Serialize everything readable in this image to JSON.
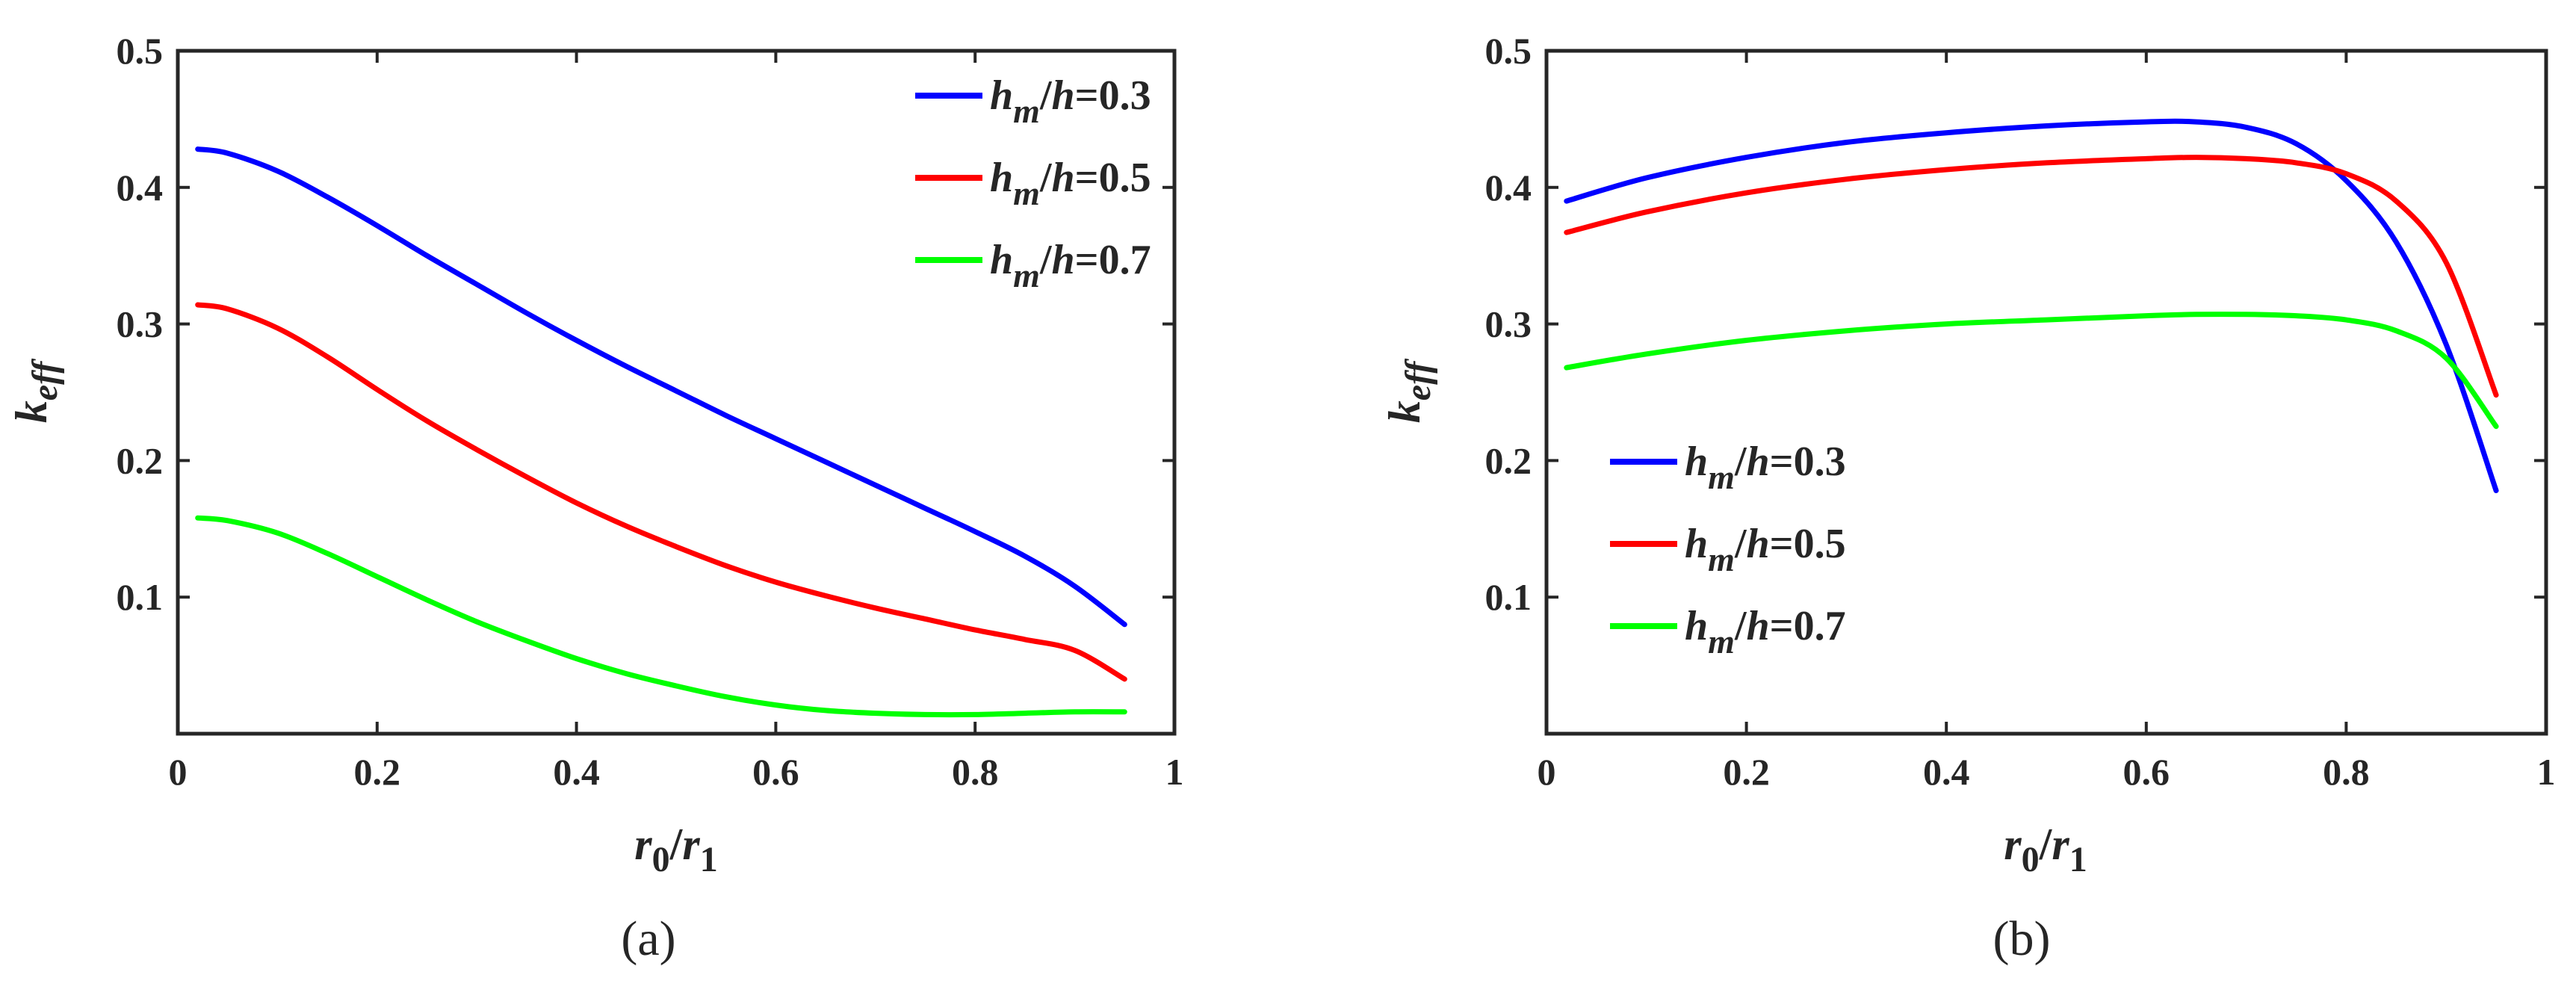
{
  "chart_data": [
    {
      "type": "line",
      "panel_label": "(a)",
      "xlabel": "r0/r1",
      "xlabel_parts": {
        "base1": "r",
        "sub1": "0",
        "sep": "/",
        "base2": "r",
        "sub2": "1"
      },
      "ylabel": "k_eff",
      "ylabel_parts": {
        "base": "k",
        "sub": "eff"
      },
      "xlim": [
        0,
        1
      ],
      "ylim": [
        0,
        0.5
      ],
      "xticks": [
        0,
        0.2,
        0.4,
        0.6,
        0.8,
        1
      ],
      "xtick_labels": [
        "0",
        "0.2",
        "0.4",
        "0.6",
        "0.8",
        "1"
      ],
      "yticks": [
        0.1,
        0.2,
        0.3,
        0.4,
        0.5
      ],
      "ytick_labels": [
        "0.1",
        "0.2",
        "0.3",
        "0.4",
        "0.5"
      ],
      "legend_position": "top-right",
      "series": [
        {
          "name": "hm/h=0.3",
          "label": {
            "base": "h",
            "sub": "m",
            "rest": "/h=0.3"
          },
          "color": "#0000FF",
          "x": [
            0.02,
            0.05,
            0.1,
            0.15,
            0.2,
            0.25,
            0.3,
            0.35,
            0.4,
            0.45,
            0.5,
            0.55,
            0.6,
            0.65,
            0.7,
            0.75,
            0.8,
            0.85,
            0.9,
            0.95
          ],
          "y": [
            0.428,
            0.425,
            0.412,
            0.393,
            0.372,
            0.35,
            0.329,
            0.308,
            0.288,
            0.269,
            0.251,
            0.233,
            0.216,
            0.199,
            0.182,
            0.165,
            0.148,
            0.13,
            0.108,
            0.08
          ]
        },
        {
          "name": "hm/h=0.5",
          "label": {
            "base": "h",
            "sub": "m",
            "rest": "/h=0.5"
          },
          "color": "#FF0000",
          "x": [
            0.02,
            0.05,
            0.1,
            0.15,
            0.2,
            0.25,
            0.3,
            0.35,
            0.4,
            0.45,
            0.5,
            0.55,
            0.6,
            0.65,
            0.7,
            0.75,
            0.8,
            0.85,
            0.9,
            0.95
          ],
          "y": [
            0.314,
            0.311,
            0.297,
            0.276,
            0.252,
            0.229,
            0.208,
            0.188,
            0.169,
            0.152,
            0.137,
            0.123,
            0.111,
            0.101,
            0.092,
            0.084,
            0.076,
            0.069,
            0.061,
            0.04
          ]
        },
        {
          "name": "hm/h=0.7",
          "label": {
            "base": "h",
            "sub": "m",
            "rest": "/h=0.7"
          },
          "color": "#00FF00",
          "x": [
            0.02,
            0.05,
            0.1,
            0.15,
            0.2,
            0.25,
            0.3,
            0.35,
            0.4,
            0.45,
            0.5,
            0.55,
            0.6,
            0.65,
            0.7,
            0.75,
            0.8,
            0.85,
            0.9,
            0.95
          ],
          "y": [
            0.158,
            0.156,
            0.147,
            0.132,
            0.115,
            0.098,
            0.082,
            0.068,
            0.055,
            0.044,
            0.035,
            0.027,
            0.021,
            0.017,
            0.015,
            0.014,
            0.014,
            0.015,
            0.016,
            0.016
          ]
        }
      ]
    },
    {
      "type": "line",
      "panel_label": "(b)",
      "xlabel": "r0/r1",
      "xlabel_parts": {
        "base1": "r",
        "sub1": "0",
        "sep": "/",
        "base2": "r",
        "sub2": "1"
      },
      "ylabel": "k_eff",
      "ylabel_parts": {
        "base": "k",
        "sub": "eff"
      },
      "xlim": [
        0,
        1
      ],
      "ylim": [
        0,
        0.5
      ],
      "xticks": [
        0,
        0.2,
        0.4,
        0.6,
        0.8,
        1
      ],
      "xtick_labels": [
        "0",
        "0.2",
        "0.4",
        "0.6",
        "0.8",
        "1"
      ],
      "yticks": [
        0.1,
        0.2,
        0.3,
        0.4,
        0.5
      ],
      "ytick_labels": [
        "0.1",
        "0.2",
        "0.3",
        "0.4",
        "0.5"
      ],
      "legend_position": "bottom-left",
      "series": [
        {
          "name": "hm/h=0.3",
          "label": {
            "base": "h",
            "sub": "m",
            "rest": "/h=0.3"
          },
          "color": "#0000FF",
          "x": [
            0.02,
            0.1,
            0.2,
            0.3,
            0.4,
            0.5,
            0.6,
            0.65,
            0.7,
            0.75,
            0.8,
            0.85,
            0.9,
            0.95
          ],
          "y": [
            0.39,
            0.407,
            0.422,
            0.433,
            0.44,
            0.445,
            0.448,
            0.448,
            0.444,
            0.432,
            0.405,
            0.36,
            0.285,
            0.178
          ]
        },
        {
          "name": "hm/h=0.5",
          "label": {
            "base": "h",
            "sub": "m",
            "rest": "/h=0.5"
          },
          "color": "#FF0000",
          "x": [
            0.02,
            0.1,
            0.2,
            0.3,
            0.4,
            0.5,
            0.6,
            0.65,
            0.7,
            0.75,
            0.8,
            0.85,
            0.9,
            0.95
          ],
          "y": [
            0.367,
            0.382,
            0.396,
            0.406,
            0.413,
            0.418,
            0.421,
            0.422,
            0.421,
            0.418,
            0.41,
            0.39,
            0.345,
            0.248
          ]
        },
        {
          "name": "hm/h=0.7",
          "label": {
            "base": "h",
            "sub": "m",
            "rest": "/h=0.7"
          },
          "color": "#00FF00",
          "x": [
            0.02,
            0.1,
            0.2,
            0.3,
            0.4,
            0.5,
            0.6,
            0.65,
            0.7,
            0.75,
            0.8,
            0.85,
            0.9,
            0.95
          ],
          "y": [
            0.268,
            0.278,
            0.288,
            0.295,
            0.3,
            0.303,
            0.306,
            0.307,
            0.307,
            0.306,
            0.303,
            0.295,
            0.275,
            0.225
          ]
        }
      ]
    }
  ]
}
